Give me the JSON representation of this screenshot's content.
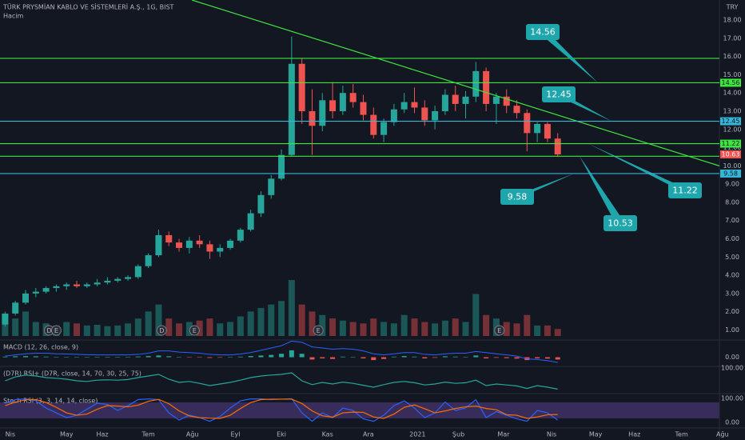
{
  "header": {
    "symbol": "TÜRK PRYSMİAN KABLO VE SİSTEMLERİ A.Ş., 1G, BIST",
    "volume_label": "Hacim",
    "currency": "TRY"
  },
  "chart_data": [
    {
      "type": "candlestick",
      "up_color": "#26a69a",
      "down_color": "#ef5350",
      "x": [
        0.5,
        1.5,
        2.5,
        3.5,
        4.5,
        5.5,
        6.5,
        7.5,
        8.5,
        9.5,
        10.5,
        11.5,
        12.5,
        13.5,
        14.5,
        15.5,
        16.5,
        17.5,
        18.5,
        19.5,
        20.5,
        21.5,
        22.5,
        23.5,
        24.5,
        25.5,
        26.5,
        27.5,
        28.5,
        29.5,
        30.5,
        31.5,
        32.5,
        33.5,
        34.5,
        35.5,
        36.5,
        37.5,
        38.5,
        39.5,
        40.5,
        41.5,
        42.5,
        43.5,
        44.5,
        45.5,
        46.5,
        47.5,
        48.5,
        49.5,
        50.5,
        51.5,
        52.5,
        53.5,
        54.5
      ],
      "open": [
        1.3,
        1.9,
        2.5,
        3.0,
        3.1,
        3.3,
        3.4,
        3.5,
        3.4,
        3.5,
        3.6,
        3.7,
        3.8,
        3.9,
        4.5,
        5.1,
        6.2,
        5.8,
        5.5,
        5.9,
        5.7,
        5.3,
        5.5,
        5.9,
        6.5,
        7.4,
        8.4,
        9.3,
        10.6,
        15.6,
        13.0,
        12.2,
        13.6,
        13.0,
        14.0,
        13.5,
        12.8,
        11.7,
        12.4,
        13.1,
        13.5,
        13.2,
        12.5,
        13.0,
        13.9,
        13.4,
        13.8,
        15.2,
        13.4,
        13.8,
        13.3,
        12.9,
        11.8,
        12.3,
        11.5
      ],
      "high": [
        2.0,
        2.6,
        3.2,
        3.3,
        3.4,
        3.5,
        3.6,
        3.7,
        3.6,
        3.8,
        3.9,
        3.9,
        4.0,
        4.6,
        5.2,
        6.5,
        6.4,
        6.0,
        6.1,
        6.2,
        5.9,
        5.7,
        6.0,
        6.6,
        7.6,
        8.6,
        9.5,
        10.9,
        17.1,
        15.9,
        14.2,
        14.0,
        14.6,
        14.4,
        14.5,
        13.9,
        13.2,
        12.6,
        13.4,
        14.0,
        14.3,
        13.6,
        13.3,
        14.2,
        14.4,
        14.1,
        15.7,
        15.4,
        14.0,
        14.2,
        13.6,
        13.1,
        12.4,
        12.4,
        11.8
      ],
      "low": [
        1.2,
        1.8,
        2.4,
        2.8,
        3.0,
        3.1,
        3.2,
        3.3,
        3.3,
        3.4,
        3.5,
        3.6,
        3.7,
        3.8,
        4.4,
        5.0,
        5.6,
        5.3,
        5.2,
        5.5,
        4.9,
        5.0,
        5.4,
        5.8,
        6.4,
        7.2,
        8.2,
        9.2,
        10.5,
        12.3,
        10.6,
        11.9,
        12.6,
        12.8,
        13.2,
        12.5,
        11.5,
        11.3,
        12.2,
        12.9,
        12.9,
        12.2,
        12.0,
        12.8,
        13.0,
        12.6,
        13.5,
        13.0,
        12.3,
        12.9,
        12.6,
        10.8,
        11.3,
        11.3,
        10.5
      ],
      "close": [
        1.9,
        2.5,
        3.0,
        3.1,
        3.3,
        3.4,
        3.5,
        3.4,
        3.5,
        3.6,
        3.7,
        3.8,
        3.9,
        4.5,
        5.1,
        6.2,
        5.8,
        5.5,
        5.9,
        5.7,
        5.3,
        5.5,
        5.9,
        6.5,
        7.4,
        8.4,
        9.3,
        10.6,
        15.6,
        13.0,
        12.2,
        13.6,
        13.0,
        14.0,
        13.5,
        12.8,
        11.7,
        12.4,
        13.1,
        13.5,
        13.2,
        12.5,
        13.0,
        13.9,
        13.4,
        13.8,
        15.2,
        13.4,
        13.8,
        13.3,
        12.9,
        11.8,
        12.3,
        11.5,
        10.63
      ],
      "volume": [
        30,
        25,
        35,
        20,
        18,
        15,
        20,
        18,
        15,
        16,
        14,
        15,
        18,
        25,
        35,
        45,
        25,
        18,
        20,
        22,
        25,
        18,
        20,
        28,
        35,
        40,
        45,
        50,
        80,
        45,
        35,
        30,
        25,
        22,
        20,
        18,
        25,
        20,
        18,
        30,
        25,
        20,
        18,
        22,
        25,
        20,
        60,
        30,
        25,
        20,
        18,
        30,
        15,
        15,
        10
      ],
      "xlim": [
        0,
        70.3
      ],
      "xticks": [
        {
          "value": 1,
          "label": "Nis"
        },
        {
          "value": 6.5,
          "label": "May"
        },
        {
          "value": 10,
          "label": "Haz"
        },
        {
          "value": 14.5,
          "label": "Tem"
        },
        {
          "value": 18.8,
          "label": "Ağu"
        },
        {
          "value": 23,
          "label": "Eyl"
        },
        {
          "value": 27.5,
          "label": "Eki"
        },
        {
          "value": 32,
          "label": "Kas"
        },
        {
          "value": 36,
          "label": "Ara"
        },
        {
          "value": 40.8,
          "label": "2021"
        },
        {
          "value": 44.8,
          "label": "Şub"
        },
        {
          "value": 49.2,
          "label": "Mar"
        },
        {
          "value": 53.9,
          "label": "Nis"
        },
        {
          "value": 58.2,
          "label": "May"
        },
        {
          "value": 62,
          "label": "Haz"
        },
        {
          "value": 66.6,
          "label": "Tem"
        },
        {
          "value": 70.6,
          "label": "Ağu"
        }
      ],
      "ylim": [
        0.45,
        19.1
      ],
      "yticks": [
        {
          "value": 1,
          "label": "1.00"
        },
        {
          "value": 2,
          "label": "2.00"
        },
        {
          "value": 3,
          "label": "3.00"
        },
        {
          "value": 4,
          "label": "4.00"
        },
        {
          "value": 5,
          "label": "5.00"
        },
        {
          "value": 6,
          "label": "6.00"
        },
        {
          "value": 7,
          "label": "7.00"
        },
        {
          "value": 8,
          "label": "8.00"
        },
        {
          "value": 9,
          "label": "9.00"
        },
        {
          "value": 10,
          "label": "10.00"
        },
        {
          "value": 11,
          "label": "11.00"
        },
        {
          "value": 12,
          "label": "12.00"
        },
        {
          "value": 13,
          "label": "13.00"
        },
        {
          "value": 14,
          "label": "14.00"
        },
        {
          "value": 15,
          "label": "15.00"
        },
        {
          "value": 16,
          "label": "16.00"
        },
        {
          "value": 17,
          "label": "17.00"
        },
        {
          "value": 18,
          "label": "18.00"
        }
      ],
      "levels": [
        {
          "value": 15.9,
          "color": "#3ee63e",
          "axis_label": false,
          "callout": false
        },
        {
          "value": 14.56,
          "color": "#3ee63e",
          "axis_label": true,
          "callout": true
        },
        {
          "value": 12.45,
          "color": "#35b5d8",
          "axis_label": true,
          "callout": true
        },
        {
          "value": 11.22,
          "color": "#3ee63e",
          "axis_label": true,
          "callout": true
        },
        {
          "value": 10.53,
          "color": "#3ee63e",
          "axis_label": false,
          "callout": true
        },
        {
          "value": 9.58,
          "color": "#35b5d8",
          "axis_label": true,
          "callout": true
        }
      ],
      "trendline": {
        "x": [
          18.75,
          70.3
        ],
        "y": [
          19.1,
          10.0
        ],
        "color": "#3ee63e"
      },
      "events": [
        {
          "x": 4.8,
          "label": "D"
        },
        {
          "x": 5.5,
          "label": "E"
        },
        {
          "x": 15.8,
          "label": "D"
        },
        {
          "x": 19.0,
          "label": "E"
        },
        {
          "x": 31.1,
          "label": "E"
        },
        {
          "x": 48.8,
          "label": "E"
        }
      ]
    },
    {
      "type": "macd",
      "title": "MACD (12, 26, close, 9)",
      "values": [
        0.05,
        0.08,
        0.1,
        0.08,
        0.05,
        0.03,
        0.02,
        0.0,
        0.0,
        0.01,
        0.02,
        0.02,
        0.03,
        0.06,
        0.1,
        0.15,
        0.08,
        0.0,
        -0.02,
        -0.03,
        -0.06,
        -0.04,
        0.0,
        0.05,
        0.1,
        0.15,
        0.2,
        0.3,
        0.6,
        0.3,
        -0.2,
        -0.1,
        -0.15,
        0.05,
        0.0,
        -0.1,
        -0.25,
        -0.15,
        0.05,
        0.1,
        0.05,
        -0.1,
        -0.05,
        0.08,
        0.05,
        0.03,
        0.15,
        -0.1,
        -0.05,
        -0.08,
        -0.12,
        -0.25,
        -0.1,
        -0.12,
        -0.2
      ],
      "line": {
        "color": "#2962ff",
        "values": [
          0.1,
          0.2,
          0.3,
          0.35,
          0.35,
          0.3,
          0.28,
          0.25,
          0.22,
          0.2,
          0.2,
          0.2,
          0.2,
          0.25,
          0.35,
          0.55,
          0.55,
          0.45,
          0.4,
          0.35,
          0.25,
          0.2,
          0.2,
          0.28,
          0.4,
          0.6,
          0.8,
          1.0,
          1.4,
          1.3,
          0.9,
          0.8,
          0.7,
          0.75,
          0.7,
          0.55,
          0.3,
          0.2,
          0.3,
          0.4,
          0.4,
          0.25,
          0.2,
          0.3,
          0.35,
          0.35,
          0.5,
          0.4,
          0.3,
          0.2,
          0.1,
          -0.15,
          -0.2,
          -0.3,
          -0.45
        ]
      },
      "ylim": [
        -0.8,
        1.5
      ],
      "yticks": [
        {
          "value": 0,
          "label": "0.00"
        }
      ]
    },
    {
      "type": "line",
      "title": "(D7R) RSI+ (D7R, close, 14, 70, 30, 25, 75)",
      "series": [
        {
          "color": "#26a69a",
          "values": [
            60,
            72,
            78,
            75,
            70,
            68,
            65,
            60,
            58,
            62,
            63,
            62,
            64,
            70,
            75,
            80,
            65,
            55,
            58,
            52,
            45,
            50,
            55,
            62,
            70,
            75,
            78,
            80,
            85,
            60,
            48,
            55,
            50,
            56,
            52,
            46,
            40,
            48,
            55,
            58,
            54,
            47,
            50,
            56,
            52,
            54,
            62,
            45,
            50,
            47,
            44,
            36,
            45,
            40,
            34
          ]
        }
      ],
      "ylim": [
        20,
        105
      ],
      "yticks": [
        {
          "value": 100,
          "label": "100.00"
        }
      ]
    },
    {
      "type": "line",
      "title": "Stoch RSI (3, 3, 14, 14, close)",
      "series": [
        {
          "color": "#2962ff",
          "values": [
            80,
            95,
            98,
            90,
            60,
            40,
            20,
            30,
            55,
            80,
            75,
            50,
            70,
            95,
            98,
            95,
            40,
            10,
            30,
            20,
            5,
            25,
            60,
            90,
            98,
            98,
            95,
            97,
            99,
            40,
            5,
            40,
            20,
            60,
            50,
            15,
            5,
            30,
            70,
            90,
            60,
            20,
            40,
            85,
            50,
            60,
            95,
            20,
            45,
            30,
            15,
            5,
            50,
            40,
            10
          ]
        },
        {
          "color": "#ff6d00",
          "values": [
            70,
            85,
            94,
            95,
            83,
            63,
            40,
            30,
            35,
            55,
            70,
            68,
            65,
            72,
            88,
            96,
            78,
            48,
            27,
            20,
            18,
            17,
            30,
            58,
            83,
            95,
            97,
            97,
            97,
            79,
            48,
            28,
            22,
            40,
            43,
            42,
            23,
            17,
            35,
            63,
            73,
            57,
            40,
            48,
            58,
            65,
            68,
            58,
            53,
            32,
            30,
            17,
            23,
            32,
            33
          ]
        }
      ],
      "ylim": [
        -23,
        120
      ],
      "yticks": [
        {
          "value": 100,
          "label": "100.00"
        },
        {
          "value": 0,
          "label": "0.00"
        }
      ]
    }
  ]
}
